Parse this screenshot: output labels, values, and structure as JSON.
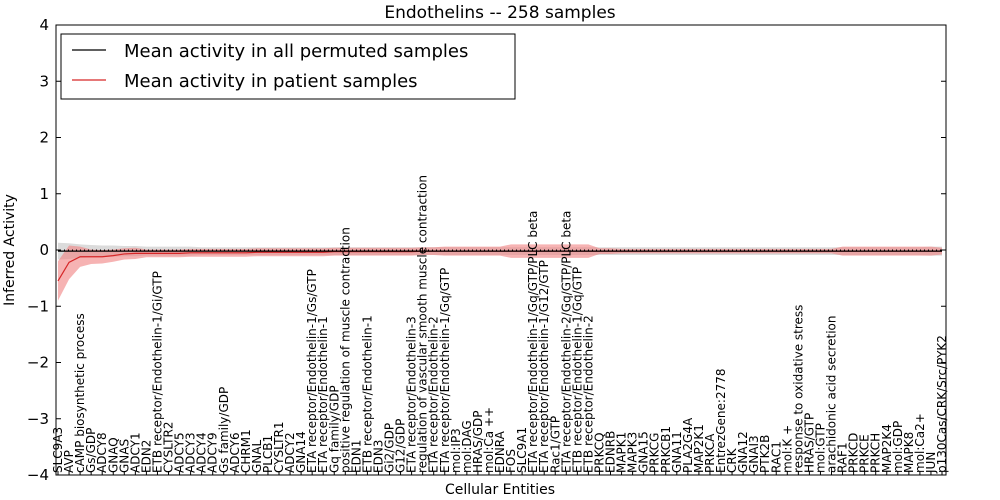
{
  "chart_data": {
    "type": "line",
    "title": "Endothelins -- 258 samples",
    "xlabel": "Cellular Entities",
    "ylabel": "Inferred Activity",
    "ylim": [
      -4,
      4
    ],
    "yticks": [
      -4,
      -3,
      -2,
      -1,
      0,
      1,
      2,
      3,
      4
    ],
    "grid": false,
    "legend_position": "top-left",
    "colors": {
      "permuted_line": "#000000",
      "permuted_band": "#bdbdbd",
      "patient_line": "#d62728",
      "patient_band": "#f08080"
    },
    "categories": [
      "SLC9A3",
      "AVP",
      "cAMP biosynthetic process",
      "Gs/GDP",
      "ADCY8",
      "GNAQ",
      "GNAS",
      "ADCY1",
      "EDN2",
      "ETB receptor/Endothelin-1/Gi/GTP",
      "CYSLTR2",
      "ADCY5",
      "ADCY3",
      "ADCY4",
      "ADCY9",
      "Gs family/GDP",
      "ADCY6",
      "CHRM1",
      "GNAL",
      "PLCB1",
      "CYSLTR1",
      "ADCY2",
      "GNA14",
      "ETA receptor/Endothelin-1/Gs/GTP",
      "ETA receptor/Endothelin-1",
      "Gq family/GDP",
      "positive regulation of muscle contraction",
      "EDN1",
      "ETB receptor/Endothelin-1",
      "EDN3",
      "Gi2/GDP",
      "G12/GDP",
      "ETA receptor/Endothelin-3",
      "regulation of vascular smooth muscle contraction",
      "ETA receptor/Endothelin-2",
      "ETA receptor/Endothelin-1/Gq/GTP",
      "mol:IP3",
      "mol:DAG",
      "HRAS/GDP",
      "mol:Ca ++",
      "EDNRA",
      "FOS",
      "SLC9A1",
      "ETA receptor/Endothelin-1/Gq/GTP/PLC beta",
      "ETA receptor/Endothelin-1/G12/GTP",
      "Rac1/GTP",
      "ETA receptor/Endothelin-2/Gq/GTP/PLC beta",
      "ETB receptor/Endothelin-1/Gq/GTP",
      "ETB receptor/Endothelin-2",
      "PRKCQ",
      "EDNRB",
      "MAPK1",
      "MAPK3",
      "GNA15",
      "PRKCG",
      "PRKCB1",
      "GNA11",
      "PLA2G4A",
      "MAP2K1",
      "PRKCA",
      "EntrezGene:2778",
      "CRK",
      "GNA12",
      "GNAI3",
      "PTK2B",
      "RAC1",
      "mol:K +",
      "response to oxidative stress",
      "HRAS/GTP",
      "mol:GTP",
      "arachidonic acid secretion",
      "RAF1",
      "PRKCD",
      "PRKCE",
      "PRKCH",
      "MAP2K4",
      "mol:GDP",
      "MAPK8",
      "mol:Ca2+",
      "JUN",
      "p130Cas/CRK/Src/PYK2"
    ],
    "series": [
      {
        "name": "Mean activity in all permuted samples",
        "values": [
          -0.02,
          -0.02,
          -0.02,
          -0.02,
          -0.02,
          -0.02,
          -0.02,
          -0.02,
          -0.02,
          -0.02,
          -0.02,
          -0.02,
          -0.02,
          -0.02,
          -0.02,
          -0.02,
          -0.02,
          -0.02,
          -0.02,
          -0.02,
          -0.02,
          -0.02,
          -0.02,
          -0.02,
          -0.02,
          -0.02,
          -0.02,
          -0.02,
          -0.02,
          -0.02,
          -0.02,
          -0.02,
          -0.02,
          -0.02,
          -0.02,
          -0.02,
          -0.02,
          -0.02,
          -0.02,
          -0.02,
          -0.02,
          -0.02,
          -0.02,
          -0.02,
          -0.02,
          -0.02,
          -0.02,
          -0.02,
          -0.02,
          -0.02,
          -0.02,
          -0.02,
          -0.02,
          -0.02,
          -0.02,
          -0.02,
          -0.02,
          -0.02,
          -0.02,
          -0.02,
          -0.02,
          -0.02,
          -0.02,
          -0.02,
          -0.02,
          -0.02,
          -0.02,
          -0.02,
          -0.02,
          -0.02,
          -0.02,
          -0.02,
          -0.02,
          -0.02,
          -0.02,
          -0.02,
          -0.02,
          -0.02,
          -0.02,
          -0.02,
          -0.02
        ],
        "band": [
          0.15,
          0.14,
          0.12,
          0.11,
          0.1,
          0.1,
          0.09,
          0.09,
          0.08,
          0.08,
          0.08,
          0.08,
          0.08,
          0.07,
          0.07,
          0.07,
          0.07,
          0.07,
          0.07,
          0.07,
          0.07,
          0.07,
          0.07,
          0.07,
          0.07,
          0.07,
          0.07,
          0.07,
          0.07,
          0.07,
          0.07,
          0.07,
          0.07,
          0.07,
          0.07,
          0.07,
          0.07,
          0.07,
          0.07,
          0.07,
          0.07,
          0.07,
          0.07,
          0.07,
          0.07,
          0.07,
          0.07,
          0.07,
          0.07,
          0.07,
          0.07,
          0.07,
          0.07,
          0.07,
          0.07,
          0.07,
          0.07,
          0.07,
          0.07,
          0.07,
          0.07,
          0.07,
          0.07,
          0.07,
          0.07,
          0.07,
          0.07,
          0.07,
          0.07,
          0.07,
          0.07,
          0.07,
          0.07,
          0.07,
          0.07,
          0.07,
          0.07,
          0.07,
          0.07,
          0.08,
          0.08
        ]
      },
      {
        "name": "Mean activity in patient samples",
        "values": [
          -0.55,
          -0.22,
          -0.12,
          -0.12,
          -0.12,
          -0.1,
          -0.07,
          -0.06,
          -0.06,
          -0.06,
          -0.06,
          -0.06,
          -0.05,
          -0.05,
          -0.05,
          -0.05,
          -0.05,
          -0.05,
          -0.04,
          -0.04,
          -0.04,
          -0.04,
          -0.04,
          -0.04,
          -0.04,
          -0.03,
          -0.03,
          -0.03,
          -0.03,
          -0.03,
          -0.03,
          -0.03,
          -0.03,
          -0.02,
          -0.02,
          -0.02,
          -0.02,
          -0.02,
          -0.02,
          -0.02,
          -0.02,
          -0.02,
          -0.02,
          -0.02,
          -0.02,
          -0.02,
          -0.02,
          -0.02,
          -0.02,
          -0.02,
          -0.02,
          -0.02,
          -0.02,
          -0.02,
          -0.02,
          -0.02,
          -0.02,
          -0.02,
          -0.02,
          -0.02,
          -0.02,
          -0.02,
          -0.02,
          -0.02,
          -0.02,
          -0.02,
          -0.02,
          -0.02,
          -0.02,
          -0.02,
          -0.02,
          -0.02,
          -0.02,
          -0.02,
          -0.02,
          -0.02,
          -0.02,
          -0.02,
          -0.02,
          -0.02,
          -0.02
        ],
        "band": [
          0.35,
          0.3,
          0.18,
          0.13,
          0.12,
          0.11,
          0.1,
          0.1,
          0.07,
          0.07,
          0.07,
          0.07,
          0.07,
          0.07,
          0.07,
          0.07,
          0.07,
          0.07,
          0.07,
          0.07,
          0.07,
          0.07,
          0.07,
          0.07,
          0.07,
          0.07,
          0.07,
          0.07,
          0.07,
          0.07,
          0.07,
          0.07,
          0.07,
          0.07,
          0.07,
          0.08,
          0.08,
          0.08,
          0.08,
          0.08,
          0.08,
          0.12,
          0.12,
          0.12,
          0.12,
          0.12,
          0.12,
          0.12,
          0.12,
          0.05,
          0.05,
          0.04,
          0.04,
          0.04,
          0.04,
          0.04,
          0.04,
          0.04,
          0.04,
          0.04,
          0.04,
          0.04,
          0.04,
          0.04,
          0.04,
          0.04,
          0.04,
          0.04,
          0.04,
          0.04,
          0.04,
          0.08,
          0.08,
          0.08,
          0.08,
          0.08,
          0.08,
          0.08,
          0.08,
          0.08,
          0.06
        ]
      }
    ]
  }
}
